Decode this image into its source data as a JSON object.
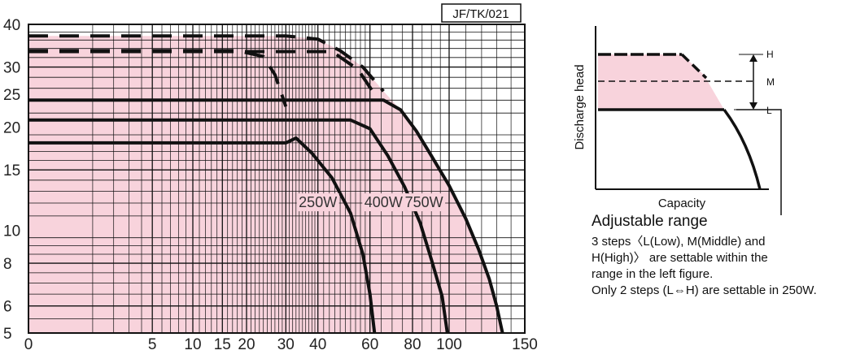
{
  "chart_data": {
    "type": "line",
    "title": "",
    "code_label": "JF/TK/021",
    "x_scale": "power",
    "y_scale": "log",
    "xlim": [
      0,
      150
    ],
    "ylim": [
      5,
      40
    ],
    "x_ticks": [
      0,
      5,
      10,
      15,
      20,
      30,
      40,
      60,
      80,
      100,
      150
    ],
    "x_tick_labels": [
      "0",
      "5",
      "10",
      "15",
      "20",
      "30",
      "40",
      "60",
      "80",
      "100",
      "150"
    ],
    "y_ticks": [
      5,
      6,
      8,
      10,
      15,
      20,
      25,
      30,
      40
    ],
    "y_tick_labels": [
      "5",
      "6",
      "8",
      "10",
      "15",
      "20",
      "25",
      "30",
      "40"
    ],
    "grid": true,
    "shaded_region": "adjustable range",
    "colors": {
      "fill": "#f8d3dc",
      "grid": "#111111",
      "curve": "#111111"
    },
    "series": [
      {
        "name": "250W",
        "style": "solid",
        "x": [
          0,
          30,
          33,
          38,
          45,
          52,
          57,
          60,
          62
        ],
        "y": [
          18,
          18,
          18.6,
          16.8,
          14.2,
          11.2,
          8.5,
          6.5,
          5.0
        ]
      },
      {
        "name": "250W H",
        "style": "dashed",
        "x": [
          0,
          18,
          24,
          27,
          30
        ],
        "y": [
          33.5,
          33.5,
          32.2,
          28.5,
          23
        ]
      },
      {
        "name": "400W",
        "style": "solid",
        "x": [
          0,
          52,
          60,
          68,
          76,
          84,
          90,
          96,
          99
        ],
        "y": [
          21,
          21,
          19.8,
          16.5,
          13.4,
          10.5,
          8.2,
          6.4,
          5.0
        ]
      },
      {
        "name": "400W H",
        "style": "dashed",
        "x": [
          0,
          45,
          55,
          62
        ],
        "y": [
          33.3,
          33.3,
          29.5,
          25
        ]
      },
      {
        "name": "750W",
        "style": "solid",
        "x": [
          0,
          66,
          74,
          82,
          90,
          100,
          110,
          118,
          125,
          130,
          134
        ],
        "y": [
          24,
          24,
          22.5,
          19.5,
          16.5,
          13.5,
          10.8,
          8.8,
          7.2,
          6.0,
          5.0
        ]
      },
      {
        "name": "750W H",
        "style": "dashed",
        "x": [
          0,
          30,
          40,
          48,
          57,
          66
        ],
        "y": [
          37,
          37,
          36.2,
          33.5,
          30,
          25.5
        ]
      }
    ],
    "curve_labels": [
      "250W",
      "400W",
      "750W"
    ]
  },
  "inset": {
    "ylabel": "Discharge head",
    "xlabel": "Capacity",
    "level_labels": [
      "H",
      "M",
      "L"
    ]
  },
  "notes": {
    "title": "Adjustable range",
    "lines": [
      "3 steps〈L(Low), M(Middle) and",
      "H(High)〉 are settable within the",
      "range in the left figure.",
      "Only 2 steps (L⇔H) are settable in 250W."
    ]
  }
}
